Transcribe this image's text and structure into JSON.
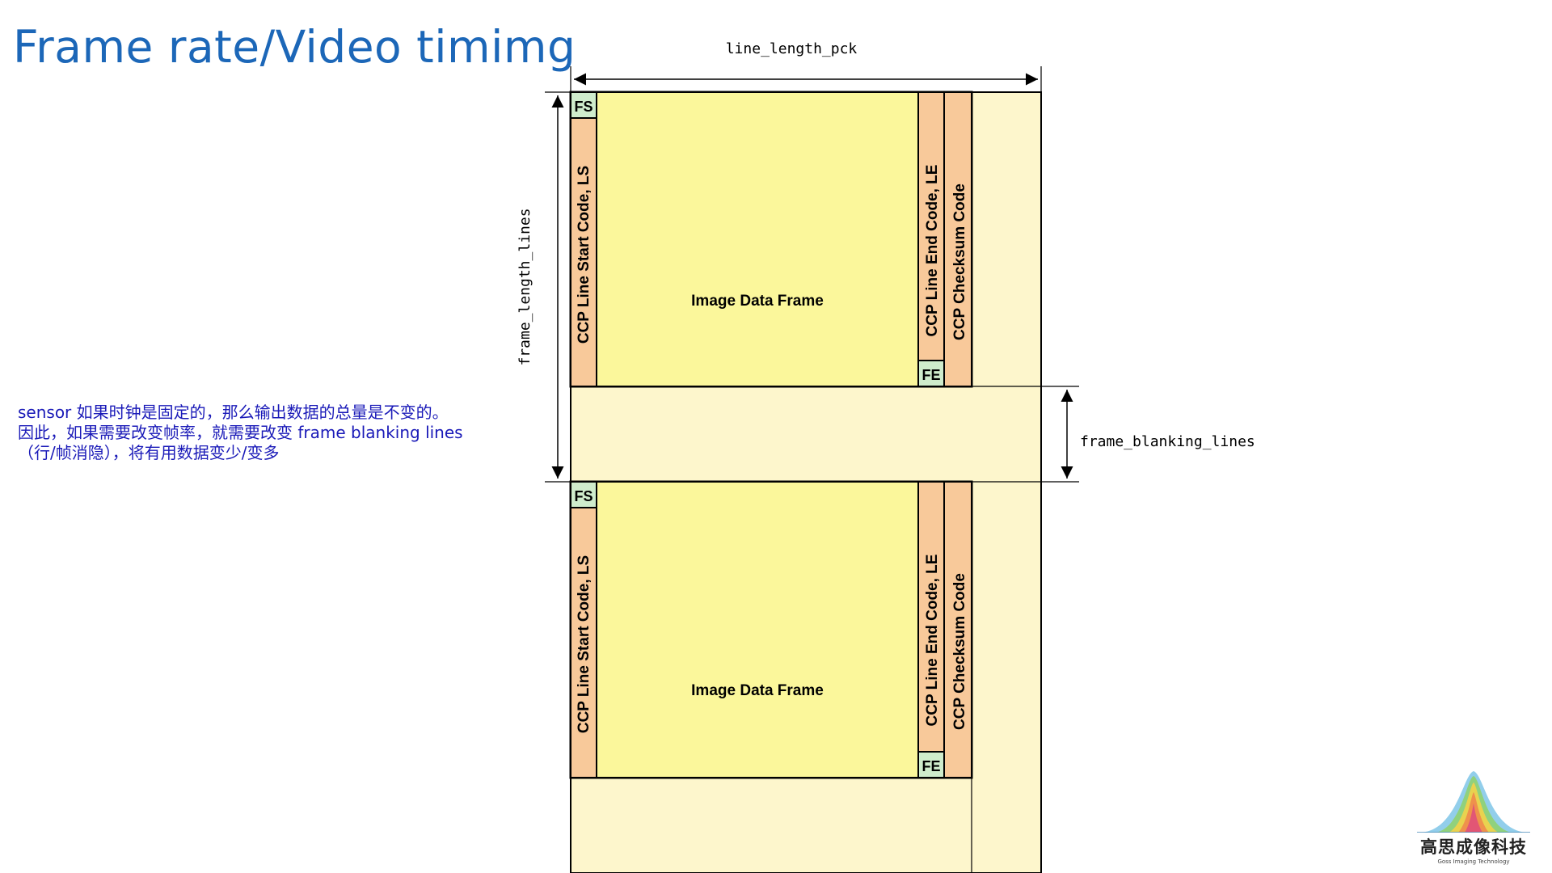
{
  "title": "Frame rate/Video timimg",
  "note_lines": [
    "sensor 如果时钟是固定的，那么输出数据的总量是不变的。",
    "因此，如果需要改变帧率，就需要改变 frame blanking lines",
    "（行/帧消隐），将有用数据变少/变多"
  ],
  "diagram": {
    "line_length_label": "line_length_pck",
    "frame_length_label": "frame_length_lines",
    "frame_blanking_label": "frame_blanking_lines",
    "frames": [
      {
        "fs_label": "FS",
        "fe_label": "FE",
        "line_start_label": "CCP Line Start Code, LS",
        "image_label": "Image Data Frame",
        "line_end_label": "CCP Line End Code, LE",
        "checksum_label": "CCP Checksum Code"
      },
      {
        "fs_label": "FS",
        "fe_label": "FE",
        "line_start_label": "CCP Line Start Code, LS",
        "image_label": "Image Data Frame",
        "line_end_label": "CCP Line End Code, LE",
        "checksum_label": "CCP Checksum Code"
      }
    ]
  },
  "logo": {
    "name": "高思成像科技",
    "subtitle": "Goss Imaging Technology"
  },
  "colors": {
    "title": "#1c67b8",
    "note": "#1a1ab8",
    "image_area": "#fbf79b",
    "code_column": "#f8c99a",
    "fs_fe_box": "#cfeccc",
    "blanking": "#fdf6cc"
  }
}
